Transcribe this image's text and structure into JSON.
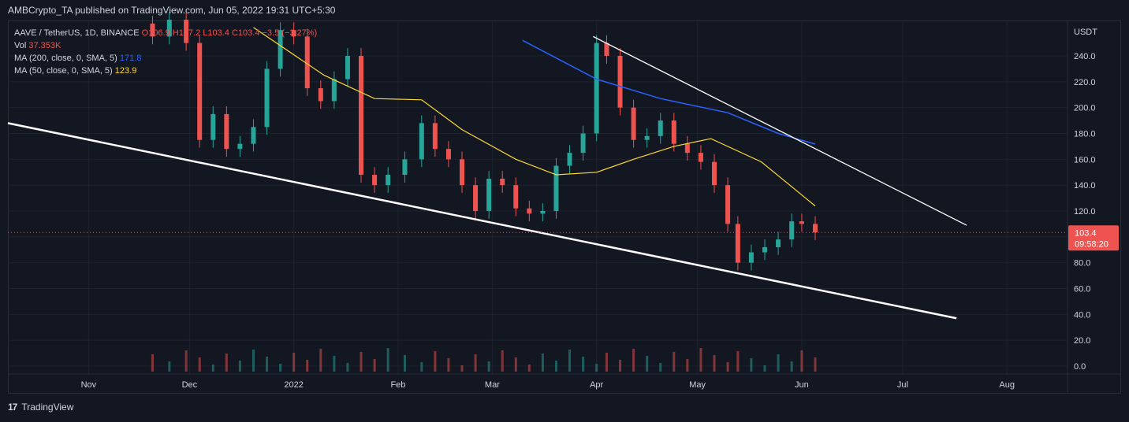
{
  "header": {
    "published": "AMBCrypto_TA published on TradingView.com, Jun 05, 2022 19:31 UTC+5:30"
  },
  "legend": {
    "symbol": "AAVE / TetherUS, 1D, BINANCE",
    "ohlc": "O106.9 H107.2 L103.4 C103.4 −3.5 (−3.27%)",
    "vol_label": "Vol",
    "vol_value": "37.353K",
    "ma200_label": "MA (200, close, 0, SMA, 5)",
    "ma200_value": "171.8",
    "ma50_label": "MA (50, close, 0, SMA, 5)",
    "ma50_value": "123.9"
  },
  "price_tag": {
    "price": "103.4",
    "countdown": "09:58:20"
  },
  "footer": {
    "brand": "TradingView"
  },
  "colors": {
    "up": "#26a69a",
    "down": "#ef5350",
    "ma200": "#2962ff",
    "ma50": "#fdd835",
    "trend": "#ffffff",
    "bg": "#131722"
  },
  "chart_data": {
    "type": "candlestick",
    "title": "AAVE / TetherUS, 1D, BINANCE",
    "ylabel": "USDT",
    "ylim": [
      0,
      260
    ],
    "y_ticks": [
      "240.0",
      "220.0",
      "200.0",
      "180.0",
      "160.0",
      "140.0",
      "120.0",
      "100.0",
      "80.0",
      "60.0",
      "40.0",
      "20.0",
      "0.0"
    ],
    "x_ticks": [
      {
        "label": "Nov",
        "date": "2021-11-01"
      },
      {
        "label": "Dec",
        "date": "2021-12-01"
      },
      {
        "label": "2022",
        "date": "2022-01-01"
      },
      {
        "label": "Feb",
        "date": "2022-02-01"
      },
      {
        "label": "Mar",
        "date": "2022-03-01"
      },
      {
        "label": "Apr",
        "date": "2022-04-01"
      },
      {
        "label": "May",
        "date": "2022-05-01"
      },
      {
        "label": "Jun",
        "date": "2022-06-01"
      },
      {
        "label": "Jul",
        "date": "2022-07-01"
      },
      {
        "label": "Aug",
        "date": "2022-08-01"
      }
    ],
    "candles": [
      {
        "date": "2021-11-15",
        "close": 265
      },
      {
        "date": "2021-11-20",
        "close": 255
      },
      {
        "date": "2021-11-25",
        "close": 268
      },
      {
        "date": "2021-11-30",
        "close": 250
      },
      {
        "date": "2021-12-04",
        "close": 175
      },
      {
        "date": "2021-12-08",
        "close": 195
      },
      {
        "date": "2021-12-12",
        "close": 168
      },
      {
        "date": "2021-12-16",
        "close": 172
      },
      {
        "date": "2021-12-20",
        "close": 185
      },
      {
        "date": "2021-12-24",
        "close": 230
      },
      {
        "date": "2021-12-28",
        "close": 260
      },
      {
        "date": "2022-01-01",
        "close": 255
      },
      {
        "date": "2022-01-05",
        "close": 215
      },
      {
        "date": "2022-01-09",
        "close": 205
      },
      {
        "date": "2022-01-13",
        "close": 222
      },
      {
        "date": "2022-01-17",
        "close": 240
      },
      {
        "date": "2022-01-21",
        "close": 148
      },
      {
        "date": "2022-01-25",
        "close": 140
      },
      {
        "date": "2022-01-29",
        "close": 148
      },
      {
        "date": "2022-02-03",
        "close": 160
      },
      {
        "date": "2022-02-08",
        "close": 188
      },
      {
        "date": "2022-02-12",
        "close": 168
      },
      {
        "date": "2022-02-16",
        "close": 160
      },
      {
        "date": "2022-02-20",
        "close": 140
      },
      {
        "date": "2022-02-24",
        "close": 120
      },
      {
        "date": "2022-02-28",
        "close": 145
      },
      {
        "date": "2022-03-04",
        "close": 140
      },
      {
        "date": "2022-03-08",
        "close": 122
      },
      {
        "date": "2022-03-12",
        "close": 118
      },
      {
        "date": "2022-03-16",
        "close": 120
      },
      {
        "date": "2022-03-20",
        "close": 155
      },
      {
        "date": "2022-03-24",
        "close": 165
      },
      {
        "date": "2022-03-28",
        "close": 180
      },
      {
        "date": "2022-04-01",
        "close": 250
      },
      {
        "date": "2022-04-04",
        "close": 240
      },
      {
        "date": "2022-04-08",
        "close": 200
      },
      {
        "date": "2022-04-12",
        "close": 175
      },
      {
        "date": "2022-04-16",
        "close": 178
      },
      {
        "date": "2022-04-20",
        "close": 190
      },
      {
        "date": "2022-04-24",
        "close": 172
      },
      {
        "date": "2022-04-28",
        "close": 165
      },
      {
        "date": "2022-05-02",
        "close": 158
      },
      {
        "date": "2022-05-06",
        "close": 140
      },
      {
        "date": "2022-05-10",
        "close": 110
      },
      {
        "date": "2022-05-13",
        "close": 80
      },
      {
        "date": "2022-05-17",
        "close": 88
      },
      {
        "date": "2022-05-21",
        "close": 92
      },
      {
        "date": "2022-05-25",
        "close": 98
      },
      {
        "date": "2022-05-29",
        "close": 112
      },
      {
        "date": "2022-06-01",
        "close": 110
      },
      {
        "date": "2022-06-05",
        "close": 103.4
      }
    ],
    "ma200": [
      {
        "date": "2022-03-10",
        "value": 252
      },
      {
        "date": "2022-04-01",
        "value": 222
      },
      {
        "date": "2022-04-20",
        "value": 207
      },
      {
        "date": "2022-05-10",
        "value": 196
      },
      {
        "date": "2022-05-25",
        "value": 180
      },
      {
        "date": "2022-06-05",
        "value": 171.8
      }
    ],
    "ma50": [
      {
        "date": "2021-12-20",
        "value": 262
      },
      {
        "date": "2022-01-10",
        "value": 225
      },
      {
        "date": "2022-01-25",
        "value": 207
      },
      {
        "date": "2022-02-08",
        "value": 206
      },
      {
        "date": "2022-02-20",
        "value": 183
      },
      {
        "date": "2022-03-08",
        "value": 160
      },
      {
        "date": "2022-03-20",
        "value": 148
      },
      {
        "date": "2022-04-01",
        "value": 150
      },
      {
        "date": "2022-04-12",
        "value": 160
      },
      {
        "date": "2022-04-24",
        "value": 170
      },
      {
        "date": "2022-05-05",
        "value": 176
      },
      {
        "date": "2022-05-20",
        "value": 158
      },
      {
        "date": "2022-06-05",
        "value": 123.9
      }
    ],
    "trendlines": [
      {
        "name": "upper",
        "from": {
          "date": "2022-03-31",
          "value": 255
        },
        "to": {
          "date": "2022-07-20",
          "value": 109
        }
      },
      {
        "name": "lower",
        "from": {
          "date": "2021-10-08",
          "value": 188
        },
        "to": {
          "date": "2022-07-17",
          "value": 37
        }
      }
    ],
    "volume_max_k": 40
  }
}
